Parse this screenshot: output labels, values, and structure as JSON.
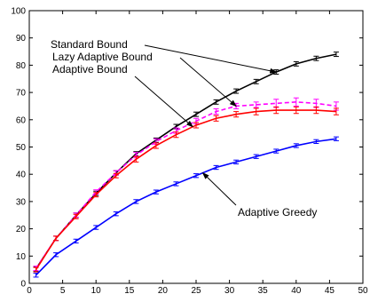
{
  "chart_data": {
    "type": "line",
    "title": "",
    "xlabel": "",
    "ylabel": "",
    "xlim": [
      0,
      50
    ],
    "ylim": [
      0,
      100
    ],
    "xticks": [
      "0",
      "5",
      "10",
      "15",
      "20",
      "25",
      "30",
      "35",
      "40",
      "45",
      "50"
    ],
    "yticks": [
      "0",
      "10",
      "20",
      "30",
      "40",
      "50",
      "60",
      "70",
      "80",
      "90",
      "100"
    ],
    "grid": false,
    "x": [
      1,
      4,
      7,
      10,
      13,
      16,
      19,
      22,
      25,
      28,
      31,
      34,
      37,
      40,
      43,
      46
    ],
    "series": [
      {
        "name": "Standard Bound",
        "color": "#000000",
        "dashed": false,
        "values": [
          5.3,
          16.5,
          25.0,
          33.0,
          40.5,
          47.5,
          52.5,
          57.5,
          62.0,
          66.5,
          70.5,
          74.0,
          77.5,
          80.5,
          82.5,
          84.0
        ],
        "errors": [
          0.8,
          0.8,
          0.8,
          0.8,
          0.8,
          0.8,
          0.8,
          0.8,
          0.8,
          0.8,
          0.8,
          0.8,
          0.8,
          0.8,
          0.8,
          0.8
        ]
      },
      {
        "name": "Lazy Adaptive Bound",
        "color": "#ff00ff",
        "dashed": true,
        "values": [
          5.5,
          16.5,
          25.0,
          33.5,
          40.5,
          47.0,
          52.0,
          56.0,
          59.5,
          63.0,
          65.0,
          65.5,
          66.0,
          66.5,
          66.0,
          65.0
        ],
        "errors": [
          0.8,
          0.8,
          0.8,
          0.8,
          0.8,
          1.0,
          1.0,
          1.0,
          1.0,
          1.0,
          1.0,
          1.0,
          1.5,
          1.5,
          1.5,
          1.5
        ]
      },
      {
        "name": "Adaptive Bound",
        "color": "#ff0000",
        "dashed": false,
        "values": [
          5.0,
          16.5,
          24.5,
          32.5,
          39.5,
          45.5,
          50.5,
          54.5,
          58.0,
          60.5,
          62.0,
          63.0,
          63.5,
          63.5,
          63.5,
          63.0
        ],
        "errors": [
          0.8,
          0.8,
          0.8,
          0.8,
          0.8,
          1.0,
          1.0,
          1.0,
          1.0,
          1.0,
          1.0,
          1.2,
          1.2,
          1.2,
          1.2,
          1.2
        ]
      },
      {
        "name": "Adaptive Greedy",
        "color": "#0000ff",
        "dashed": false,
        "values": [
          3.0,
          10.5,
          15.5,
          20.5,
          25.5,
          30.0,
          33.5,
          36.5,
          39.5,
          42.5,
          44.5,
          46.5,
          48.5,
          50.5,
          52.0,
          53.0
        ],
        "errors": [
          0.7,
          0.7,
          0.7,
          0.7,
          0.7,
          0.7,
          0.7,
          0.7,
          0.7,
          0.7,
          0.7,
          0.7,
          0.7,
          0.7,
          0.7,
          0.7
        ]
      }
    ],
    "annotations": [
      {
        "text": "Standard Bound",
        "series": 0,
        "target_x": 37
      },
      {
        "text": "Lazy Adaptive Bound",
        "series": 1,
        "target_x": 31
      },
      {
        "text": "Adaptive Bound",
        "series": 2,
        "target_x": 24.5
      },
      {
        "text": "Adaptive Greedy",
        "series": 3,
        "target_x": 26
      }
    ]
  }
}
